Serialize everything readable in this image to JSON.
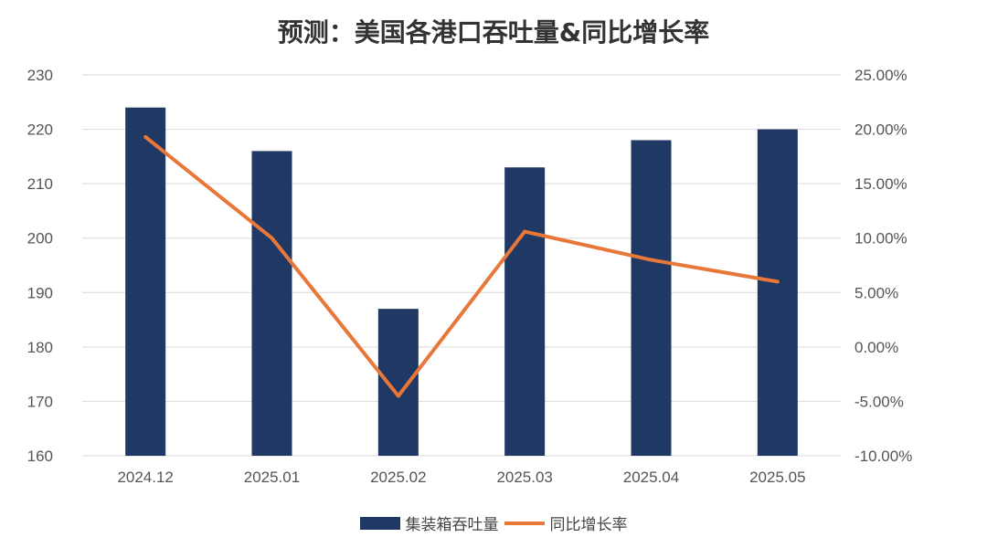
{
  "chart_data": {
    "type": "bar+line",
    "title": "预测：美国各港口吞吐量&同比增长率",
    "categories": [
      "2024.12",
      "2025.01",
      "2025.02",
      "2025.03",
      "2025.04",
      "2025.05"
    ],
    "series": [
      {
        "name": "集装箱吞吐量",
        "type": "bar",
        "axis": "left",
        "color": "#1f3864",
        "values": [
          224,
          216,
          187,
          213,
          218,
          220
        ]
      },
      {
        "name": "同比增长率",
        "type": "line",
        "axis": "right",
        "color": "#e8773a",
        "values": [
          19.3,
          10.0,
          -4.5,
          10.6,
          8.0,
          6.0
        ]
      }
    ],
    "ylim_left": [
      160,
      230
    ],
    "yticks_left": [
      "160",
      "170",
      "180",
      "190",
      "200",
      "210",
      "220",
      "230"
    ],
    "ylim_right": [
      -10,
      25
    ],
    "yticks_right": [
      "-10.00%",
      "-5.00%",
      "0.00%",
      "5.00%",
      "10.00%",
      "15.00%",
      "20.00%",
      "25.00%"
    ],
    "grid": true,
    "legend": "bottom"
  }
}
